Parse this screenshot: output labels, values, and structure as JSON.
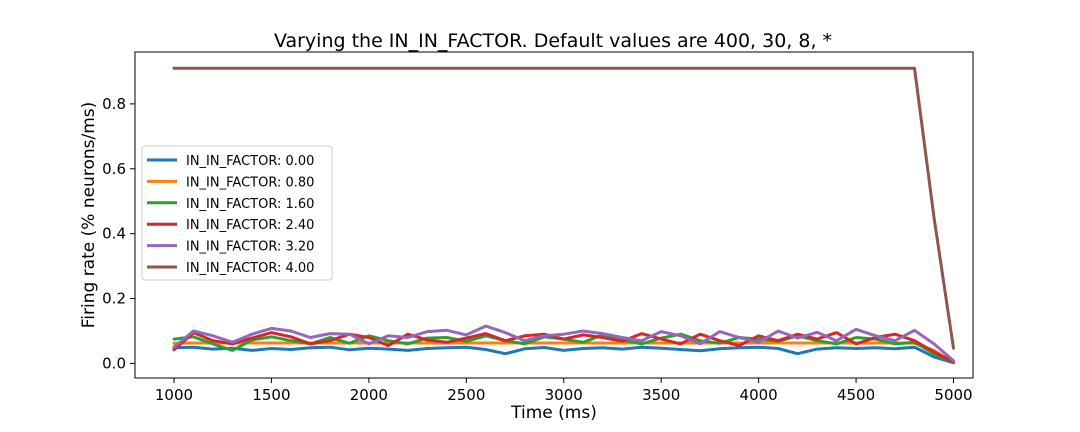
{
  "chart_data": {
    "type": "line",
    "title": "Varying the IN_IN_FACTOR. Default values are 400, 30, 8, *",
    "xlabel": "Time (ms)",
    "ylabel": "Firing rate (% neurons/ms)",
    "xlim": [
      800,
      5100
    ],
    "ylim": [
      -0.045,
      0.96
    ],
    "xticks": [
      1000,
      1500,
      2000,
      2500,
      3000,
      3500,
      4000,
      4500,
      5000
    ],
    "yticks": [
      0.0,
      0.2,
      0.4,
      0.6,
      0.8
    ],
    "xtick_labels": [
      "1000",
      "1500",
      "2000",
      "2500",
      "3000",
      "3500",
      "4000",
      "4500",
      "5000"
    ],
    "ytick_labels": [
      "0.0",
      "0.2",
      "0.4",
      "0.6",
      "0.8"
    ],
    "grid": false,
    "legend": {
      "placement": "center-left"
    },
    "x": [
      1000,
      1100,
      1200,
      1300,
      1400,
      1500,
      1600,
      1700,
      1800,
      1900,
      2000,
      2100,
      2200,
      2300,
      2400,
      2500,
      2600,
      2700,
      2800,
      2900,
      3000,
      3100,
      3200,
      3300,
      3400,
      3500,
      3600,
      3700,
      3800,
      3900,
      4000,
      4100,
      4200,
      4300,
      4400,
      4500,
      4600,
      4700,
      4800,
      4900,
      5000
    ],
    "series": [
      {
        "name": "IN_IN_FACTOR: 0.00",
        "color": "#1f77b4",
        "values": [
          0.048,
          0.05,
          0.044,
          0.047,
          0.04,
          0.046,
          0.043,
          0.048,
          0.05,
          0.042,
          0.047,
          0.044,
          0.04,
          0.046,
          0.048,
          0.05,
          0.043,
          0.03,
          0.045,
          0.049,
          0.04,
          0.046,
          0.048,
          0.044,
          0.05,
          0.047,
          0.043,
          0.039,
          0.045,
          0.048,
          0.05,
          0.046,
          0.03,
          0.044,
          0.048,
          0.046,
          0.048,
          0.045,
          0.05,
          0.02,
          0.002
        ]
      },
      {
        "name": "IN_IN_FACTOR: 0.80",
        "color": "#ff7f0e",
        "values": [
          0.062,
          0.063,
          0.063,
          0.063,
          0.063,
          0.063,
          0.063,
          0.063,
          0.063,
          0.063,
          0.063,
          0.063,
          0.063,
          0.063,
          0.063,
          0.063,
          0.063,
          0.063,
          0.063,
          0.063,
          0.063,
          0.063,
          0.063,
          0.063,
          0.063,
          0.063,
          0.063,
          0.063,
          0.063,
          0.063,
          0.063,
          0.063,
          0.063,
          0.063,
          0.063,
          0.063,
          0.063,
          0.063,
          0.062,
          0.04,
          0.003
        ]
      },
      {
        "name": "IN_IN_FACTOR: 1.60",
        "color": "#2ca02c",
        "values": [
          0.075,
          0.082,
          0.06,
          0.04,
          0.072,
          0.082,
          0.07,
          0.06,
          0.08,
          0.062,
          0.085,
          0.07,
          0.06,
          0.078,
          0.08,
          0.068,
          0.085,
          0.07,
          0.06,
          0.082,
          0.075,
          0.065,
          0.088,
          0.072,
          0.06,
          0.078,
          0.09,
          0.07,
          0.062,
          0.08,
          0.075,
          0.068,
          0.085,
          0.07,
          0.06,
          0.08,
          0.075,
          0.06,
          0.065,
          0.03,
          0.004
        ]
      },
      {
        "name": "IN_IN_FACTOR: 2.40",
        "color": "#d62728",
        "values": [
          0.042,
          0.095,
          0.07,
          0.06,
          0.078,
          0.095,
          0.082,
          0.06,
          0.07,
          0.09,
          0.08,
          0.055,
          0.09,
          0.072,
          0.065,
          0.078,
          0.092,
          0.07,
          0.085,
          0.09,
          0.075,
          0.088,
          0.08,
          0.068,
          0.092,
          0.075,
          0.06,
          0.09,
          0.07,
          0.055,
          0.085,
          0.07,
          0.09,
          0.075,
          0.095,
          0.06,
          0.08,
          0.09,
          0.07,
          0.035,
          0.004
        ]
      },
      {
        "name": "IN_IN_FACTOR: 3.20",
        "color": "#9467bd",
        "values": [
          0.05,
          0.1,
          0.085,
          0.065,
          0.09,
          0.108,
          0.1,
          0.08,
          0.092,
          0.09,
          0.06,
          0.085,
          0.08,
          0.098,
          0.102,
          0.088,
          0.115,
          0.095,
          0.07,
          0.085,
          0.09,
          0.1,
          0.092,
          0.08,
          0.07,
          0.098,
          0.085,
          0.06,
          0.098,
          0.08,
          0.065,
          0.1,
          0.078,
          0.096,
          0.07,
          0.105,
          0.085,
          0.07,
          0.102,
          0.06,
          0.008
        ]
      },
      {
        "name": "IN_IN_FACTOR: 4.00",
        "color": "#8c564b",
        "values": [
          0.91,
          0.91,
          0.91,
          0.91,
          0.91,
          0.91,
          0.91,
          0.91,
          0.91,
          0.91,
          0.91,
          0.91,
          0.91,
          0.91,
          0.91,
          0.91,
          0.91,
          0.91,
          0.91,
          0.91,
          0.91,
          0.91,
          0.91,
          0.91,
          0.91,
          0.91,
          0.91,
          0.91,
          0.91,
          0.91,
          0.91,
          0.91,
          0.91,
          0.91,
          0.91,
          0.91,
          0.91,
          0.91,
          0.91,
          0.45,
          0.047
        ]
      }
    ]
  }
}
